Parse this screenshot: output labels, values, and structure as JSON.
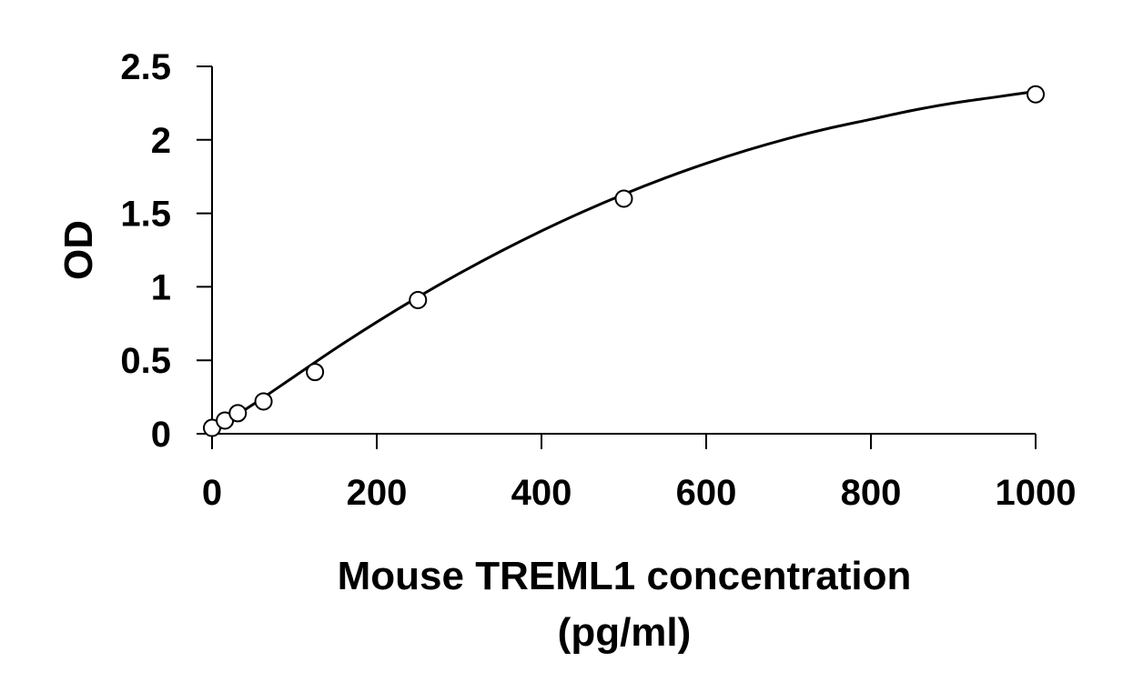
{
  "chart_data": {
    "type": "scatter",
    "title": "",
    "xlabel_lines": [
      "Mouse TREML1 concentration",
      "(pg/ml)"
    ],
    "ylabel": "OD",
    "xlim": [
      0,
      1000
    ],
    "ylim": [
      0,
      2.5
    ],
    "x_ticks": [
      {
        "value": 0,
        "label": "0"
      },
      {
        "value": 200,
        "label": "200"
      },
      {
        "value": 400,
        "label": "400"
      },
      {
        "value": 600,
        "label": "600"
      },
      {
        "value": 800,
        "label": "800"
      },
      {
        "value": 1000,
        "label": "1000"
      }
    ],
    "y_ticks": [
      {
        "value": 0,
        "label": "0"
      },
      {
        "value": 0.5,
        "label": "0.5"
      },
      {
        "value": 1,
        "label": "1"
      },
      {
        "value": 1.5,
        "label": "1.5"
      },
      {
        "value": 2,
        "label": "2"
      },
      {
        "value": 2.5,
        "label": "2.5"
      }
    ],
    "grid": false,
    "legend": "none",
    "series": [
      {
        "x": [
          0,
          15.6,
          31.25,
          62.5,
          125,
          250,
          500,
          1000
        ],
        "y": [
          0.04,
          0.09,
          0.14,
          0.22,
          0.42,
          0.91,
          1.6,
          2.31
        ],
        "marker": "open-circle",
        "color": "#000000"
      }
    ],
    "fit_curve": {
      "type": "smooth-fit",
      "x": [
        0,
        50,
        100,
        150,
        200,
        250,
        300,
        350,
        400,
        450,
        500,
        550,
        600,
        650,
        700,
        750,
        800,
        850,
        900,
        950,
        1000
      ],
      "y": [
        0.02,
        0.2,
        0.39,
        0.58,
        0.76,
        0.93,
        1.09,
        1.24,
        1.38,
        1.51,
        1.63,
        1.74,
        1.84,
        1.93,
        2.01,
        2.08,
        2.14,
        2.2,
        2.25,
        2.29,
        2.33
      ],
      "color": "#000000"
    }
  }
}
